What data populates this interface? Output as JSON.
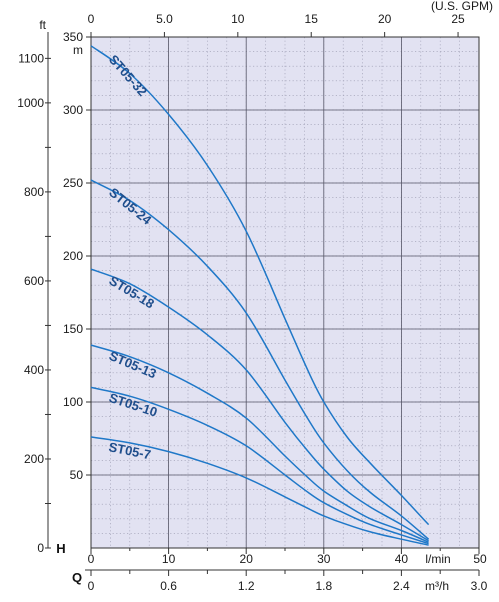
{
  "chart_data": {
    "type": "line",
    "title": "",
    "background_color": "#e2e2f2",
    "curve_color": "#1f78c8",
    "label_color": "#1f4e8c",
    "x": {
      "label": "l/min",
      "unit": "l/min",
      "range": [
        0,
        50
      ],
      "ticks": [
        "0",
        "10",
        "20",
        "30",
        "40",
        "50"
      ],
      "minor_ticks": [
        5,
        15,
        25,
        35,
        45
      ],
      "grid": true
    },
    "x_secondary_bottom": {
      "letter": "Q",
      "label": "m³/h",
      "range": [
        0,
        3.0
      ],
      "ticks": [
        "0",
        "0.6",
        "1.2",
        "1.8",
        "2.4",
        "3.0"
      ]
    },
    "x_secondary_top": {
      "label": "(U.S. GPM)",
      "range": [
        0,
        25
      ],
      "ticks": [
        "0",
        "5.0",
        "10",
        "15",
        "20",
        "25"
      ]
    },
    "y": {
      "letter": "H",
      "label": "m",
      "unit": "m",
      "range": [
        0,
        350
      ],
      "ticks": [
        "50",
        "100",
        "150",
        "200",
        "250",
        "300",
        "350"
      ],
      "grid": true
    },
    "y_secondary": {
      "label": "ft",
      "range": [
        0,
        1148
      ],
      "labeled_ticks": [
        {
          "value": 0,
          "label": "0"
        },
        {
          "value": 200,
          "label": "200"
        },
        {
          "value": 400,
          "label": "400"
        },
        {
          "value": 600,
          "label": "600"
        },
        {
          "value": 800,
          "label": "800"
        },
        {
          "value": 1000,
          "label": "1000"
        },
        {
          "value": 1100,
          "label": "1100"
        }
      ],
      "unlabeled_ticks": [
        100,
        300,
        500,
        700,
        900
      ]
    },
    "series": [
      {
        "name": "ST05-32",
        "x": [
          0,
          5,
          10,
          15,
          20,
          25,
          28,
          30,
          33,
          36,
          40,
          43.5
        ],
        "y": [
          344,
          325,
          297,
          262,
          217,
          157,
          121,
          100,
          76,
          58,
          36,
          16
        ]
      },
      {
        "name": "ST05-24",
        "x": [
          0,
          5,
          10,
          15,
          20,
          25,
          28,
          30,
          33,
          36,
          40,
          43.5
        ],
        "y": [
          252,
          238,
          218,
          193,
          161,
          115,
          88,
          72,
          53,
          38,
          22,
          6
        ]
      },
      {
        "name": "ST05-18",
        "x": [
          0,
          5,
          10,
          15,
          20,
          25,
          28,
          30,
          33,
          36,
          40,
          43.5
        ],
        "y": [
          191,
          181,
          165,
          146,
          122,
          86,
          66,
          54,
          39,
          28,
          16,
          5
        ]
      },
      {
        "name": "ST05-13",
        "x": [
          0,
          5,
          10,
          15,
          20,
          25,
          28,
          30,
          33,
          36,
          40,
          43.5
        ],
        "y": [
          139,
          131,
          120,
          106,
          89,
          63,
          48,
          39,
          29,
          20,
          12,
          4
        ]
      },
      {
        "name": "ST05-10",
        "x": [
          0,
          5,
          10,
          15,
          20,
          25,
          28,
          30,
          33,
          36,
          40,
          43.5
        ],
        "y": [
          110,
          104,
          95,
          84,
          70,
          50,
          38,
          31,
          23,
          16,
          9,
          3
        ]
      },
      {
        "name": "ST05-7",
        "x": [
          0,
          5,
          10,
          15,
          20,
          25,
          28,
          30,
          33,
          36,
          40,
          43.5
        ],
        "y": [
          76,
          72,
          66,
          58,
          48,
          35,
          27,
          22,
          16,
          11,
          6,
          2
        ]
      }
    ]
  }
}
